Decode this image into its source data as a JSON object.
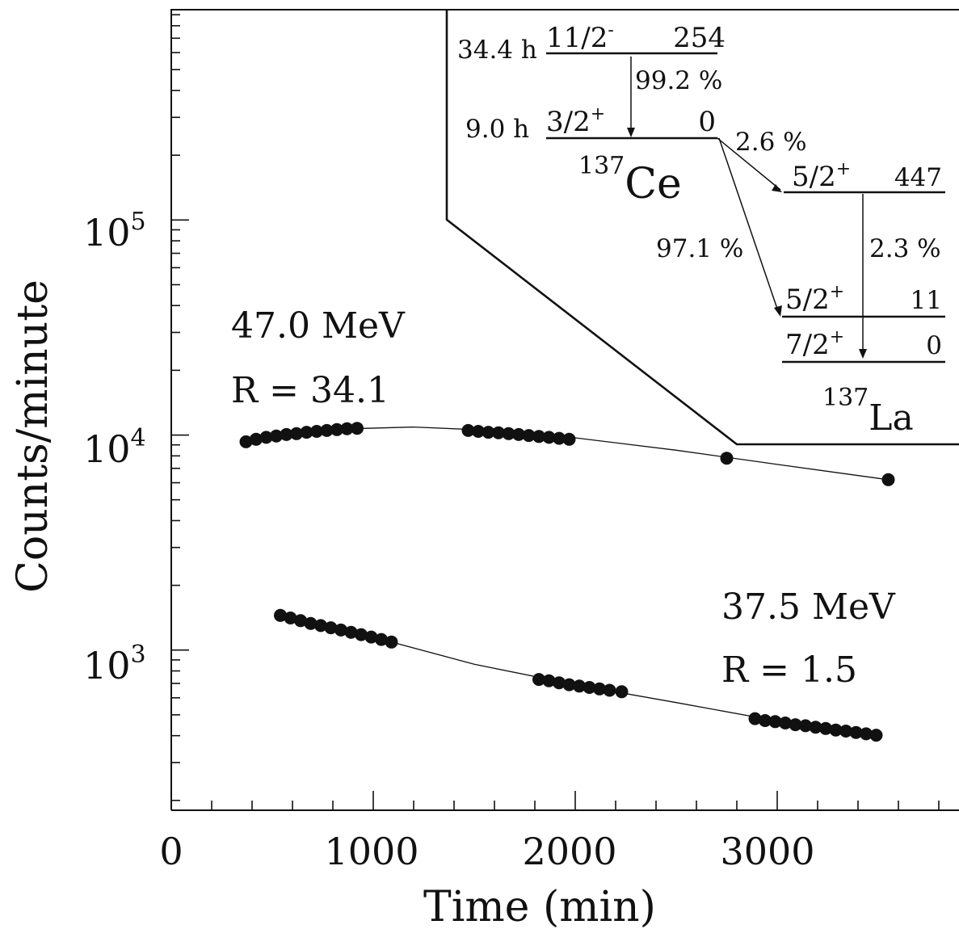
{
  "chart_data": {
    "type": "scatter",
    "title": "",
    "xlabel": "Time (min)",
    "ylabel": "Counts/minute",
    "xlim": [
      0,
      3900
    ],
    "ylim": [
      180,
      950000
    ],
    "yscale": "log",
    "x_ticks": [
      "0",
      "1000",
      "2000",
      "3000"
    ],
    "y_ticks": [
      {
        "base": "10",
        "exp": "3",
        "value": 1000
      },
      {
        "base": "10",
        "exp": "4",
        "value": 10000
      },
      {
        "base": "10",
        "exp": "5",
        "value": 100000
      }
    ],
    "grid": false,
    "series": [
      {
        "label_line1": "47.0 MeV",
        "label_line2": "R = 34.1",
        "x": [
          370,
          420,
          470,
          520,
          570,
          620,
          670,
          720,
          770,
          820,
          870,
          920,
          1470,
          1520,
          1570,
          1620,
          1670,
          1720,
          1770,
          1820,
          1870,
          1920,
          1970,
          2750,
          3550
        ],
        "y": [
          9300,
          9550,
          9750,
          9900,
          10050,
          10150,
          10300,
          10400,
          10500,
          10600,
          10700,
          10750,
          10500,
          10400,
          10300,
          10250,
          10150,
          10050,
          9950,
          9850,
          9750,
          9650,
          9550,
          7800,
          6200
        ],
        "curve_x": [
          370,
          600,
          900,
          1200,
          1500,
          2000,
          2500,
          3000,
          3550
        ],
        "curve_y": [
          9300,
          10000,
          10700,
          10900,
          10600,
          9700,
          8500,
          7300,
          6200
        ]
      },
      {
        "label_line1": "37.5 MeV",
        "label_line2": "R = 1.5",
        "x": [
          540,
          590,
          640,
          690,
          740,
          790,
          840,
          890,
          940,
          990,
          1040,
          1090,
          1820,
          1870,
          1920,
          1970,
          2020,
          2070,
          2120,
          2170,
          2230,
          2890,
          2940,
          2990,
          3040,
          3090,
          3140,
          3190,
          3240,
          3290,
          3340,
          3390,
          3440,
          3490
        ],
        "y": [
          1450,
          1410,
          1370,
          1330,
          1300,
          1270,
          1240,
          1210,
          1180,
          1150,
          1120,
          1090,
          730,
          720,
          705,
          690,
          680,
          670,
          660,
          650,
          640,
          480,
          470,
          465,
          458,
          450,
          445,
          438,
          432,
          425,
          420,
          414,
          408,
          402
        ],
        "curve_x": [
          540,
          1090,
          1500,
          2000,
          2500,
          3000,
          3500
        ],
        "curve_y": [
          1450,
          1090,
          860,
          690,
          570,
          468,
          400
        ]
      }
    ],
    "inset": {
      "parent_levels": [
        {
          "halflife": "34.4 h",
          "spin": "11/2",
          "parity": "-",
          "energy": "254"
        },
        {
          "halflife": "9.0 h",
          "spin": "3/2",
          "parity": "+",
          "energy": "0"
        }
      ],
      "parent_nucleus": {
        "mass": "137",
        "symbol": "Ce"
      },
      "daughter_levels": [
        {
          "spin": "5/2",
          "parity": "+",
          "energy": "447"
        },
        {
          "spin": "5/2",
          "parity": "+",
          "energy": "11"
        },
        {
          "spin": "7/2",
          "parity": "+",
          "energy": "0"
        }
      ],
      "daughter_nucleus": {
        "mass": "137",
        "symbol": "La"
      },
      "branches": {
        "it": "99.2 %",
        "to447": "2.6 %",
        "to11": "97.1 %",
        "g447": "2.3 %"
      }
    }
  }
}
